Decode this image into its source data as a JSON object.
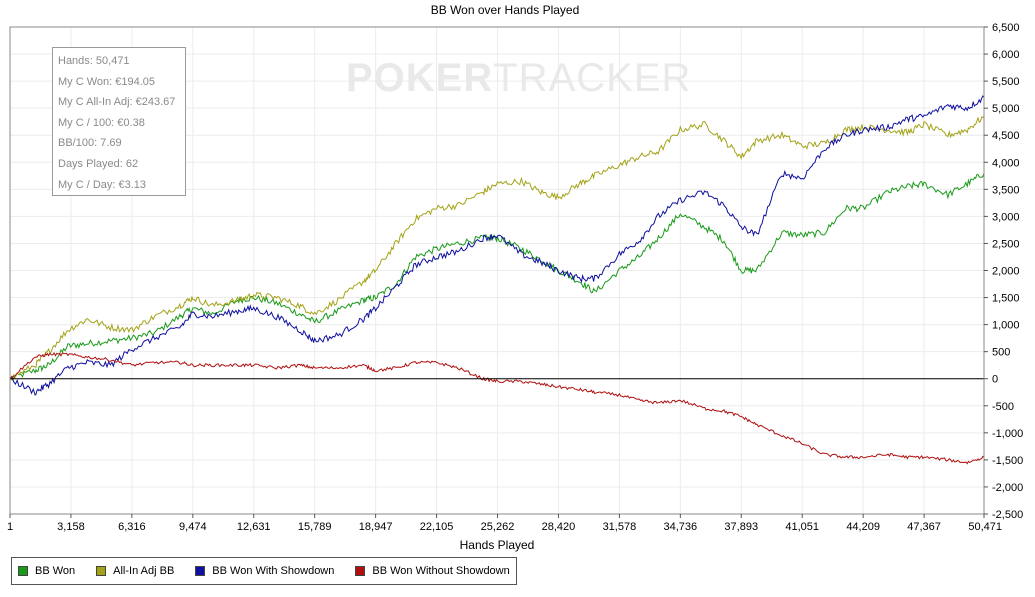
{
  "watermark": {
    "part1": "POKER",
    "part2": "TRACKER"
  },
  "stats": [
    "Hands: 50,471",
    "My C Won: €194.05",
    "My C All-In Adj: €243.67",
    "My C / 100: €0.38",
    "BB/100: 7.69",
    "Days Played: 62",
    "My C / Day: €3.13"
  ],
  "colors": {
    "bb_won": "#1a9a1a",
    "all_in_adj": "#a3a318",
    "with_showdown": "#1010a0",
    "without_showdown": "#b01010"
  },
  "chart_data": {
    "type": "line",
    "title": "BB Won over Hands Played",
    "xlabel": "Hands Played",
    "ylabel": "",
    "xlim": [
      1,
      50471
    ],
    "ylim": [
      -2500,
      6500
    ],
    "x_ticks": [
      1,
      3158,
      6316,
      9474,
      12631,
      15789,
      18947,
      22105,
      25262,
      28420,
      31578,
      34736,
      37893,
      41051,
      44209,
      47367,
      50471
    ],
    "x_tick_labels": [
      "1",
      "3,158",
      "6,316",
      "9,474",
      "12,631",
      "15,789",
      "18,947",
      "22,105",
      "25,262",
      "28,420",
      "31,578",
      "34,736",
      "37,893",
      "41,051",
      "44,209",
      "47,367",
      "50,471"
    ],
    "y_ticks": [
      -2500,
      -2000,
      -1500,
      -1000,
      -500,
      0,
      500,
      1000,
      1500,
      2000,
      2500,
      3000,
      3500,
      4000,
      4500,
      5000,
      5500,
      6000,
      6500
    ],
    "y_tick_labels": [
      "-2,500",
      "-2,000",
      "-1,500",
      "-1,000",
      "-500",
      "0",
      "500",
      "1,000",
      "1,500",
      "2,000",
      "2,500",
      "3,000",
      "3,500",
      "4,000",
      "4,500",
      "5,000",
      "5,500",
      "6,000",
      "6,500"
    ],
    "grid": true,
    "legend_position": "bottom-left",
    "x": [
      1,
      1300,
      2000,
      3000,
      4000,
      5200,
      6316,
      7500,
      8800,
      9474,
      10500,
      11800,
      12631,
      13800,
      15000,
      15789,
      17000,
      18300,
      18947,
      20000,
      21000,
      22105,
      23200,
      24500,
      25262,
      26500,
      27500,
      28420,
      29500,
      30300,
      31578,
      32600,
      33600,
      34736,
      36000,
      37000,
      37893,
      38700,
      40000,
      41051,
      42200,
      43300,
      44209,
      45500,
      46500,
      47367,
      48600,
      49600,
      50471
    ],
    "series": [
      {
        "name": "BB Won",
        "color": "#1a9a1a",
        "values": [
          0,
          150,
          250,
          600,
          650,
          700,
          750,
          850,
          1150,
          1300,
          1200,
          1450,
          1500,
          1400,
          1200,
          1050,
          1250,
          1450,
          1500,
          1750,
          2250,
          2400,
          2500,
          2600,
          2600,
          2400,
          2200,
          2000,
          1800,
          1600,
          2000,
          2250,
          2600,
          3050,
          2800,
          2550,
          2000,
          2000,
          2700,
          2650,
          2700,
          3150,
          3150,
          3450,
          3550,
          3600,
          3400,
          3600,
          3800
        ]
      },
      {
        "name": "All-In Adj BB",
        "color": "#a3a318",
        "values": [
          0,
          250,
          500,
          900,
          1100,
          950,
          900,
          1150,
          1350,
          1500,
          1350,
          1450,
          1550,
          1500,
          1350,
          1200,
          1450,
          1800,
          2000,
          2500,
          2950,
          3150,
          3200,
          3450,
          3600,
          3650,
          3450,
          3350,
          3600,
          3750,
          3950,
          4100,
          4200,
          4600,
          4700,
          4400,
          4100,
          4400,
          4500,
          4300,
          4350,
          4600,
          4650,
          4600,
          4550,
          4700,
          4500,
          4600,
          4850
        ]
      },
      {
        "name": "BB Won With Showdown",
        "color": "#1010a0",
        "values": [
          0,
          -250,
          -100,
          200,
          300,
          250,
          550,
          750,
          950,
          1200,
          1150,
          1250,
          1300,
          1150,
          900,
          700,
          800,
          1100,
          1300,
          1700,
          2100,
          2250,
          2350,
          2600,
          2650,
          2300,
          2150,
          2000,
          1850,
          1850,
          2300,
          2550,
          3000,
          3300,
          3450,
          3200,
          2800,
          2650,
          3800,
          3700,
          4250,
          4500,
          4600,
          4650,
          4800,
          4850,
          5050,
          5000,
          5200
        ]
      },
      {
        "name": "BB Won Without Showdown",
        "color": "#b01010",
        "values": [
          0,
          400,
          450,
          450,
          400,
          350,
          250,
          300,
          300,
          250,
          250,
          250,
          250,
          200,
          250,
          200,
          200,
          250,
          150,
          200,
          300,
          300,
          200,
          0,
          -50,
          -50,
          -100,
          -150,
          -200,
          -250,
          -300,
          -400,
          -450,
          -400,
          -550,
          -600,
          -700,
          -850,
          -1050,
          -1200,
          -1400,
          -1450,
          -1450,
          -1400,
          -1450,
          -1450,
          -1500,
          -1550,
          -1450
        ]
      }
    ]
  }
}
